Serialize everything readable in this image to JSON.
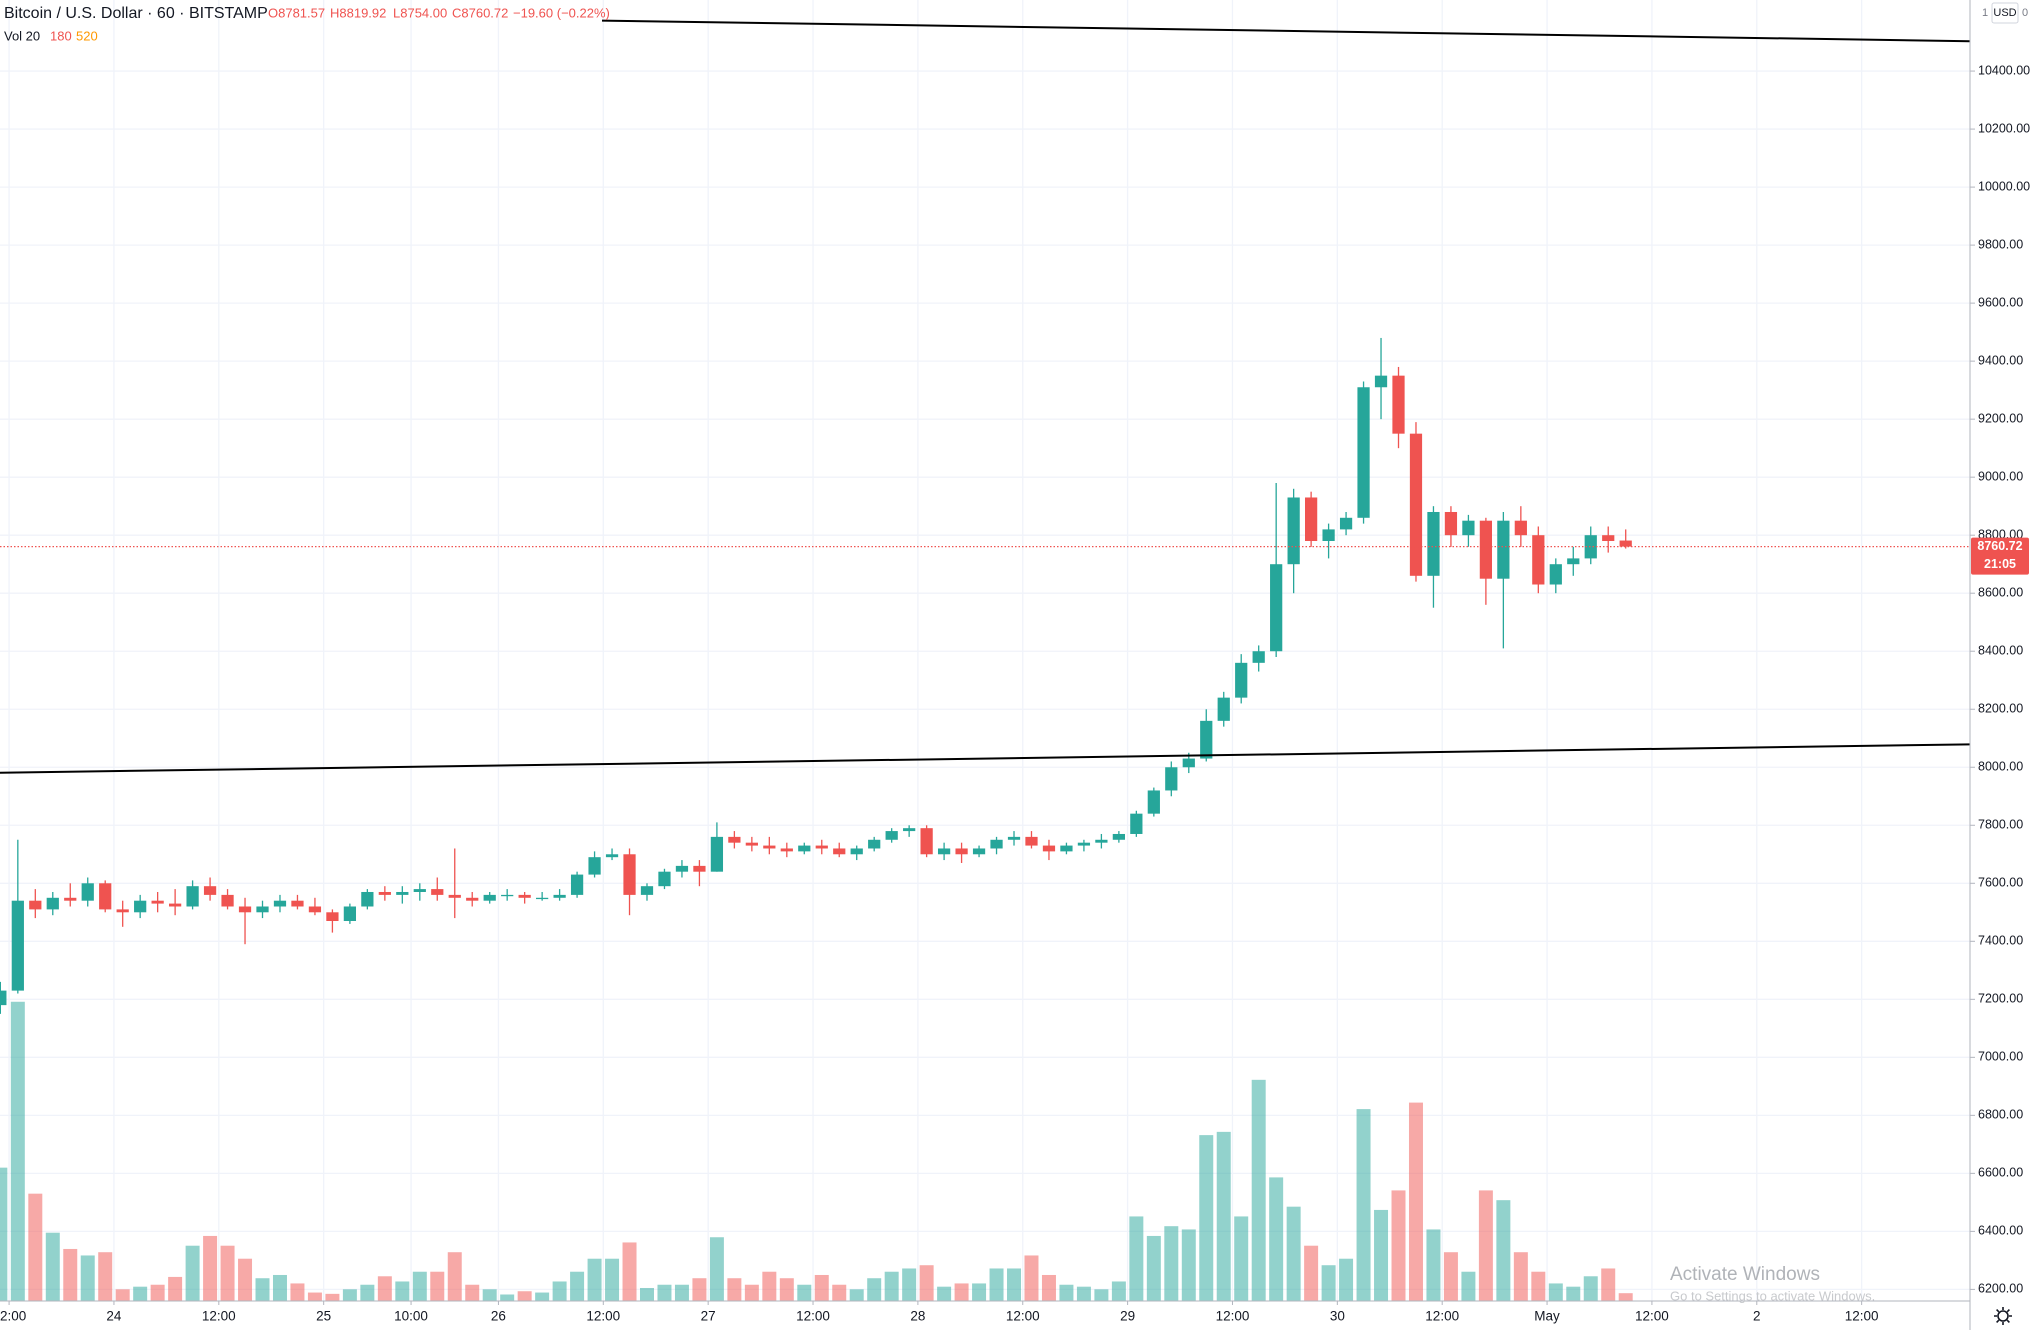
{
  "chart_data": {
    "type": "candlestick",
    "title": "Bitcoin / U.S. Dollar · 60 · BITSTAMP",
    "ohlc_labels": [
      "O8781.57",
      "H8819.92",
      "L8754.00",
      "C8760.72"
    ],
    "change_label": "−19.60 (−0.22%)",
    "volume_legend": [
      "Vol 20",
      "180",
      "520"
    ],
    "currency": "USD",
    "scale_buttons": [
      "1",
      "0"
    ],
    "countdown": "21:05",
    "watermark": [
      "Activate Windows",
      "Go to Settings to activate Windows."
    ],
    "up_color": "#26a69a",
    "down_color": "#ef5350",
    "grid": true,
    "x": [
      -13,
      -11,
      -9,
      -7,
      -5,
      -3,
      -1,
      1,
      3,
      5,
      7,
      9,
      11,
      13,
      15,
      17,
      19,
      21,
      23,
      25,
      27,
      29,
      31,
      33,
      35,
      37,
      39,
      41,
      43,
      45,
      47,
      49,
      51,
      53,
      55,
      57,
      59,
      61,
      63,
      65,
      67,
      69,
      71,
      73,
      75,
      77,
      79,
      81,
      83,
      85,
      87,
      89,
      91,
      93,
      95,
      97,
      99,
      101,
      103,
      105,
      107,
      109,
      111,
      113,
      115,
      117,
      119,
      121,
      123,
      125,
      127,
      129,
      131,
      133,
      135,
      137,
      139,
      141,
      143,
      145,
      147,
      149,
      151,
      153,
      155,
      157,
      159,
      161,
      163,
      165,
      167,
      169,
      171,
      173
    ],
    "open": [
      7180,
      7230,
      7540,
      7510,
      7550,
      7540,
      7600,
      7510,
      7500,
      7540,
      7530,
      7520,
      7590,
      7560,
      7520,
      7500,
      7520,
      7540,
      7520,
      7500,
      7470,
      7520,
      7570,
      7560,
      7570,
      7580,
      7560,
      7550,
      7540,
      7560,
      7560,
      7550,
      7550,
      7560,
      7630,
      7690,
      7700,
      7560,
      7590,
      7640,
      7660,
      7640,
      7760,
      7740,
      7730,
      7720,
      7710,
      7730,
      7720,
      7700,
      7720,
      7750,
      7780,
      7790,
      7700,
      7720,
      7700,
      7720,
      7750,
      7760,
      7730,
      7710,
      7730,
      7740,
      7750,
      7770,
      7840,
      7920,
      8000,
      8030,
      8160,
      8240,
      8360,
      8400,
      8700,
      8930,
      8780,
      8820,
      8860,
      9310,
      9350,
      9150,
      8660,
      8880,
      8800,
      8850,
      8650,
      8850,
      8800,
      8630,
      8700,
      8720,
      8800,
      8781.57
    ],
    "high": [
      7260,
      7750,
      7580,
      7570,
      7600,
      7620,
      7610,
      7540,
      7560,
      7570,
      7580,
      7610,
      7620,
      7580,
      7550,
      7540,
      7560,
      7560,
      7550,
      7510,
      7530,
      7580,
      7590,
      7590,
      7600,
      7620,
      7720,
      7570,
      7570,
      7580,
      7570,
      7570,
      7580,
      7640,
      7710,
      7720,
      7720,
      7600,
      7650,
      7680,
      7680,
      7810,
      7780,
      7760,
      7760,
      7740,
      7740,
      7750,
      7740,
      7730,
      7760,
      7790,
      7800,
      7800,
      7740,
      7740,
      7730,
      7760,
      7780,
      7780,
      7750,
      7740,
      7750,
      7770,
      7780,
      7850,
      7930,
      8020,
      8050,
      8200,
      8260,
      8390,
      8420,
      8980,
      8960,
      8950,
      8840,
      8880,
      9330,
      9480,
      9380,
      9190,
      8900,
      8900,
      8870,
      8860,
      8880,
      8900,
      8830,
      8720,
      8760,
      8830,
      8830,
      8819.92
    ],
    "low": [
      7150,
      7220,
      7480,
      7490,
      7520,
      7520,
      7500,
      7450,
      7480,
      7500,
      7490,
      7510,
      7540,
      7510,
      7390,
      7480,
      7500,
      7510,
      7490,
      7430,
      7460,
      7510,
      7540,
      7530,
      7540,
      7540,
      7480,
      7520,
      7530,
      7540,
      7530,
      7540,
      7540,
      7550,
      7620,
      7680,
      7490,
      7540,
      7580,
      7620,
      7590,
      7640,
      7720,
      7710,
      7700,
      7690,
      7700,
      7700,
      7690,
      7680,
      7710,
      7740,
      7760,
      7690,
      7680,
      7670,
      7690,
      7700,
      7730,
      7720,
      7680,
      7700,
      7710,
      7720,
      7740,
      7760,
      7830,
      7900,
      7980,
      8020,
      8140,
      8220,
      8330,
      8380,
      8600,
      8760,
      8720,
      8800,
      8840,
      9200,
      9100,
      8640,
      8550,
      8760,
      8760,
      8560,
      8410,
      8760,
      8600,
      8600,
      8660,
      8700,
      8740,
      8754
    ],
    "close": [
      7230,
      7540,
      7510,
      7550,
      7540,
      7600,
      7510,
      7500,
      7540,
      7530,
      7520,
      7590,
      7560,
      7520,
      7500,
      7520,
      7540,
      7520,
      7500,
      7470,
      7520,
      7570,
      7560,
      7570,
      7580,
      7560,
      7550,
      7540,
      7560,
      7560,
      7550,
      7550,
      7560,
      7630,
      7690,
      7700,
      7560,
      7590,
      7640,
      7660,
      7640,
      7760,
      7740,
      7730,
      7720,
      7710,
      7730,
      7720,
      7700,
      7720,
      7750,
      7780,
      7790,
      7700,
      7720,
      7700,
      7720,
      7750,
      7760,
      7730,
      7710,
      7730,
      7740,
      7750,
      7770,
      7840,
      7920,
      8000,
      8030,
      8160,
      8240,
      8360,
      8400,
      8700,
      8930,
      8780,
      8820,
      8860,
      9310,
      9350,
      9150,
      8660,
      8880,
      8800,
      8850,
      8650,
      8850,
      8800,
      8630,
      8700,
      8720,
      8800,
      8780,
      8760.72
    ],
    "volume": [
      3075,
      6900,
      2475,
      1575,
      1200,
      1050,
      1125,
      270,
      330,
      375,
      555,
      1275,
      1500,
      1275,
      975,
      525,
      600,
      405,
      195,
      165,
      270,
      375,
      570,
      450,
      675,
      675,
      1125,
      375,
      270,
      150,
      225,
      195,
      450,
      675,
      975,
      975,
      1350,
      300,
      375,
      375,
      525,
      1470,
      525,
      375,
      675,
      525,
      375,
      600,
      375,
      270,
      525,
      675,
      750,
      825,
      330,
      405,
      405,
      750,
      750,
      1050,
      600,
      375,
      330,
      270,
      450,
      1950,
      1500,
      1725,
      1650,
      3825,
      3900,
      1950,
      5100,
      2850,
      2175,
      1275,
      825,
      975,
      4425,
      2100,
      2550,
      4575,
      1650,
      1125,
      675,
      2550,
      2325,
      1125,
      675,
      405,
      330,
      570,
      750,
      180
    ],
    "xlim": [
      -13.04,
      212.4
    ],
    "ylim": [
      6160,
      10645
    ],
    "xticks": [
      {
        "value": -12,
        "label": "2:00"
      },
      {
        "value": 0,
        "label": "24"
      },
      {
        "value": 12,
        "label": "12:00"
      },
      {
        "value": 24,
        "label": "25"
      },
      {
        "value": 34,
        "label": "10:00"
      },
      {
        "value": 44,
        "label": "26"
      },
      {
        "value": 56,
        "label": "12:00"
      },
      {
        "value": 68,
        "label": "27"
      },
      {
        "value": 80,
        "label": "12:00"
      },
      {
        "value": 92,
        "label": "28"
      },
      {
        "value": 104,
        "label": "12:00"
      },
      {
        "value": 116,
        "label": "29"
      },
      {
        "value": 128,
        "label": "12:00"
      },
      {
        "value": 140,
        "label": "30"
      },
      {
        "value": 152,
        "label": "12:00"
      },
      {
        "value": 164,
        "label": "May"
      },
      {
        "value": 176,
        "label": "12:00"
      },
      {
        "value": 188,
        "label": "2"
      },
      {
        "value": 200,
        "label": "12:00"
      }
    ],
    "yticks": [
      {
        "value": 6200,
        "label": "6200.00"
      },
      {
        "value": 6400,
        "label": "6400.00"
      },
      {
        "value": 6600,
        "label": "6600.00"
      },
      {
        "value": 6800,
        "label": "6800.00"
      },
      {
        "value": 7000,
        "label": "7000.00"
      },
      {
        "value": 7200,
        "label": "7200.00"
      },
      {
        "value": 7400,
        "label": "7400.00"
      },
      {
        "value": 7600,
        "label": "7600.00"
      },
      {
        "value": 7800,
        "label": "7800.00"
      },
      {
        "value": 8000,
        "label": "8000.00"
      },
      {
        "value": 8200,
        "label": "8200.00"
      },
      {
        "value": 8400,
        "label": "8400.00"
      },
      {
        "value": 8600,
        "label": "8600.00"
      },
      {
        "value": 8800,
        "label": "8800.00"
      },
      {
        "value": 9000,
        "label": "9000.00"
      },
      {
        "value": 9200,
        "label": "9200.00"
      },
      {
        "value": 9400,
        "label": "9400.00"
      },
      {
        "value": 9600,
        "label": "9600.00"
      },
      {
        "value": 9800,
        "label": "9800.00"
      },
      {
        "value": 10000,
        "label": "10000.00"
      },
      {
        "value": 10200,
        "label": "10200.00"
      },
      {
        "value": 10400,
        "label": "10400.00"
      }
    ],
    "trend_lines": [
      {
        "x": [
          -13.04,
          212.4
        ],
        "y": [
          7981,
          8079
        ]
      },
      {
        "x": [
          55.85,
          212.4
        ],
        "y": [
          10574,
          10503
        ]
      }
    ]
  }
}
